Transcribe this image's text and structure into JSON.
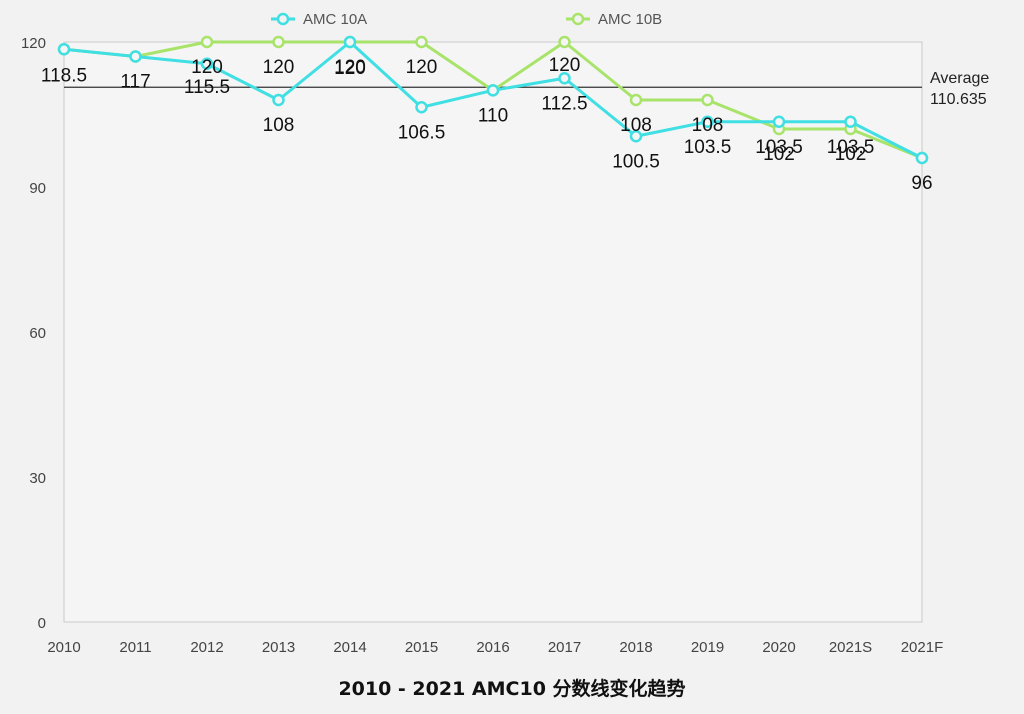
{
  "chart_data": {
    "type": "line",
    "title": "2010 - 2021 AMC10 分数线变化趋势",
    "categories": [
      "2010",
      "2011",
      "2012",
      "2013",
      "2014",
      "2015",
      "2016",
      "2017",
      "2018",
      "2019",
      "2020",
      "2021S",
      "2021F"
    ],
    "series": [
      {
        "name": "AMC 10A",
        "color": "#3fdfe3",
        "values": [
          118.5,
          117,
          115.5,
          108,
          120,
          106.5,
          110,
          112.5,
          100.5,
          103.5,
          103.5,
          103.5,
          96
        ],
        "labels": [
          "118.5",
          "117",
          "115.5",
          "108",
          "120",
          "106.5",
          "110",
          "112.5",
          "100.5",
          "103.5",
          "103.5",
          "103.5",
          "96"
        ]
      },
      {
        "name": "AMC 10B",
        "color": "#a8e36a",
        "values": [
          118.5,
          117,
          120,
          120,
          120,
          120,
          110,
          120,
          108,
          108,
          102,
          102,
          96
        ],
        "labels": [
          "",
          "",
          "120",
          "120",
          "120",
          "120",
          "",
          "120",
          "108",
          "108",
          "102",
          "102",
          ""
        ]
      }
    ],
    "ylim": [
      0,
      120
    ],
    "yticks": [
      "0",
      "30",
      "60",
      "90",
      "120"
    ],
    "average": {
      "label": "Average",
      "value": 110.635,
      "value_label": "110.635"
    },
    "legend_position": "top",
    "grid": false
  }
}
